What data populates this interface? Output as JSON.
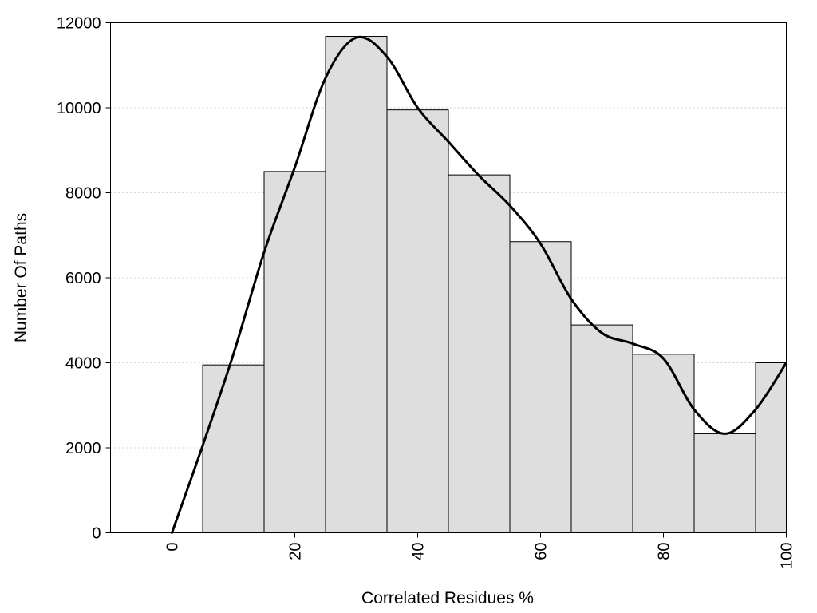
{
  "chart_data": {
    "type": "bar",
    "xlabel": "Correlated Residues %",
    "ylabel": "Number Of Paths",
    "xlim": [
      -10,
      100
    ],
    "ylim": [
      0,
      12000
    ],
    "xticks": [
      0,
      20,
      40,
      60,
      80,
      100
    ],
    "yticks": [
      0,
      2000,
      4000,
      6000,
      8000,
      10000,
      12000
    ],
    "grid": true,
    "bar_width": 10,
    "bars": {
      "x": [
        0,
        10,
        20,
        30,
        40,
        50,
        60,
        70,
        80,
        90,
        100
      ],
      "values": [
        0,
        3950,
        8500,
        11680,
        9950,
        8420,
        6850,
        4890,
        4200,
        2330,
        4000
      ]
    },
    "curve": {
      "type": "line",
      "x": [
        0,
        5,
        10,
        15,
        20,
        25,
        30,
        35,
        40,
        45,
        50,
        55,
        60,
        65,
        70,
        75,
        80,
        85,
        90,
        95,
        100
      ],
      "y": [
        0,
        2050,
        4200,
        6600,
        8600,
        10700,
        11650,
        11200,
        10000,
        9200,
        8400,
        7700,
        6800,
        5500,
        4700,
        4450,
        4100,
        2900,
        2330,
        2900,
        4000
      ]
    }
  }
}
